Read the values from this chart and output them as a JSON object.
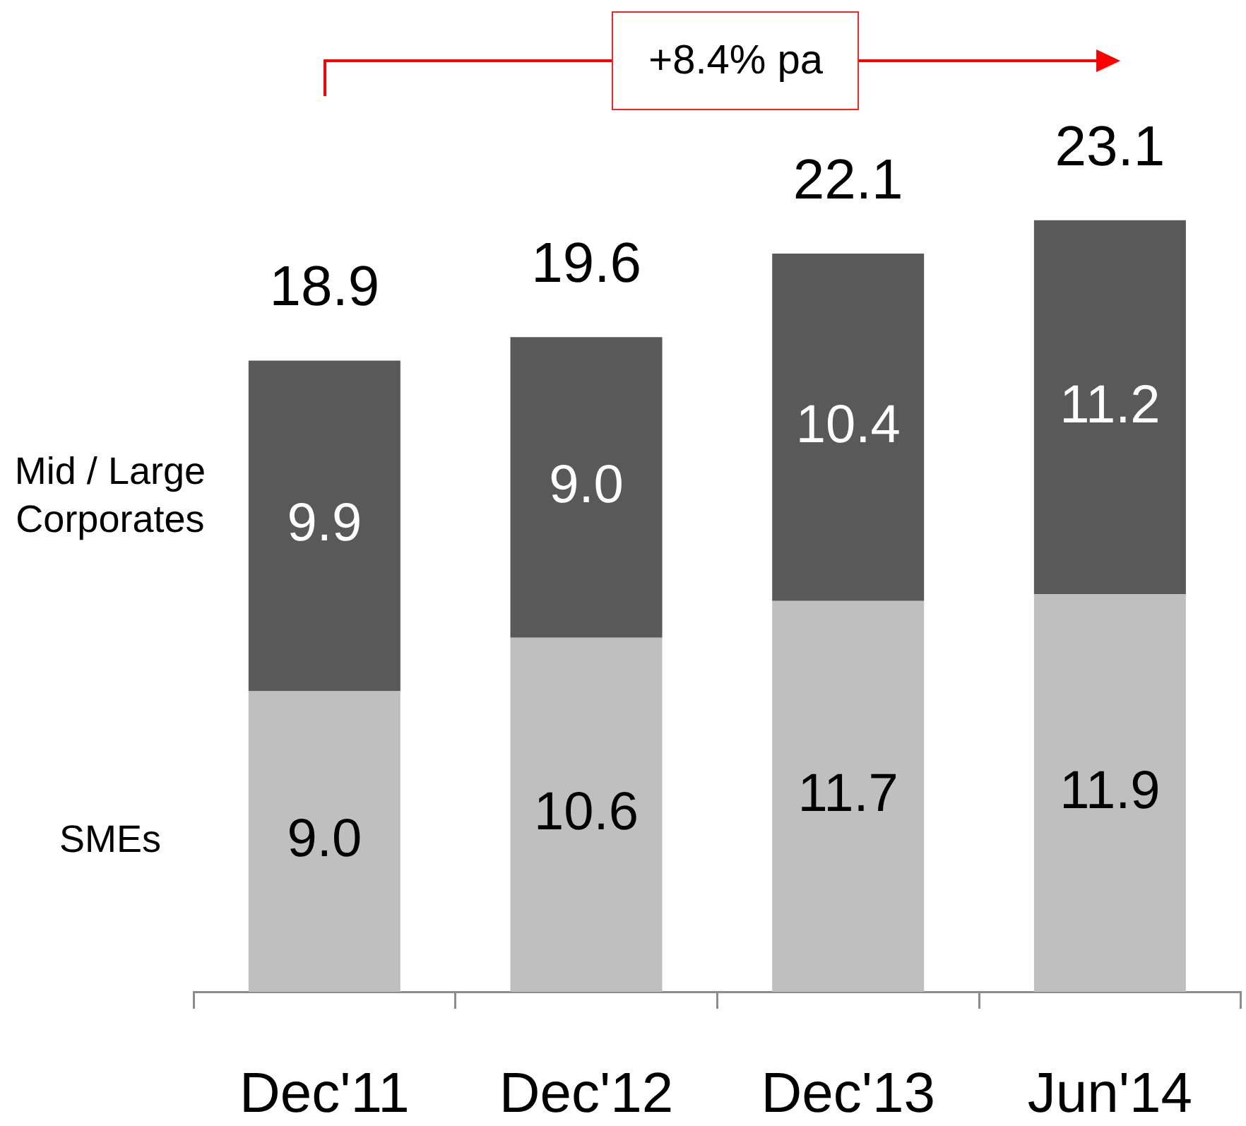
{
  "chart_data": {
    "type": "bar",
    "stacked": true,
    "categories": [
      "Dec'11",
      "Dec'12",
      "Dec'13",
      "Jun'14"
    ],
    "series": [
      {
        "name": "SMEs",
        "color": "#bfbfbf",
        "values": [
          9.0,
          10.6,
          11.7,
          11.9
        ],
        "value_labels": [
          "9.0",
          "10.6",
          "11.7",
          "11.9"
        ]
      },
      {
        "name": "Mid / Large Corporates",
        "color": "#595959",
        "values": [
          9.9,
          9.0,
          10.4,
          11.2
        ],
        "value_labels": [
          "9.9",
          "9.0",
          "10.4",
          "11.2"
        ]
      }
    ],
    "totals": [
      "18.9",
      "19.6",
      "22.1",
      "23.1"
    ],
    "annotations": [
      "+8.4% pa"
    ]
  }
}
